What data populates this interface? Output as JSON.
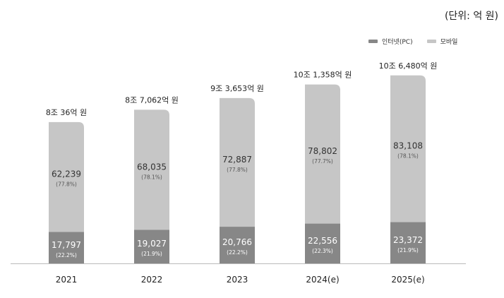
{
  "unit_label": "(단위: 억 원)",
  "chart_data": {
    "type": "bar",
    "stacked": true,
    "categories": [
      "2021",
      "2022",
      "2023",
      "2024(e)",
      "2025(e)"
    ],
    "series": [
      {
        "name": "인터넷(PC)",
        "color": "#878787",
        "values": [
          17797,
          19027,
          20766,
          22556,
          23372
        ],
        "labels": [
          "17,797",
          "19,027",
          "20,766",
          "22,556",
          "23,372"
        ],
        "shares": [
          "(22.2%)",
          "(21.9%)",
          "(22.2%)",
          "(22.3%)",
          "(21.9%)"
        ]
      },
      {
        "name": "모바일",
        "color": "#c6c6c6",
        "values": [
          62239,
          68035,
          72887,
          78802,
          83108
        ],
        "labels": [
          "62,239",
          "68,035",
          "72,887",
          "78,802",
          "83,108"
        ],
        "shares": [
          "(77.8%)",
          "(78.1%)",
          "(77.8%)",
          "(77.7%)",
          "(78.1%)"
        ]
      }
    ],
    "totals": [
      "8조 36억 원",
      "8조 7,062억 원",
      "9조 3,653억 원",
      "10조 1,358억 원",
      "10조 6,480억 원"
    ],
    "legend_position": "top-right",
    "grid": false,
    "ylim": [
      0,
      120000
    ]
  }
}
